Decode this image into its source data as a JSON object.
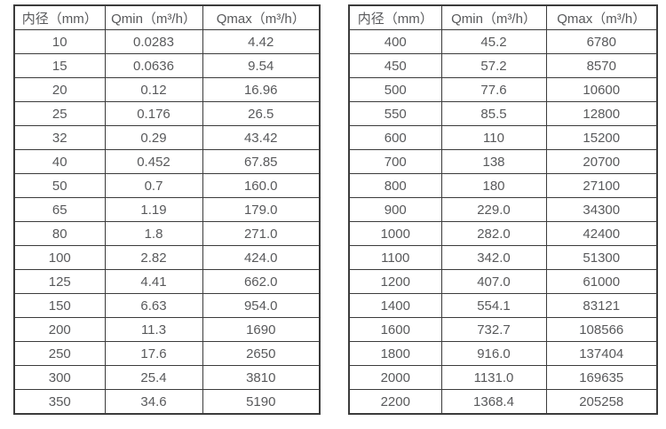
{
  "page": {
    "background": "#ffffff",
    "border_color": "#3b3b3b",
    "text_color": "#58595b"
  },
  "tables": [
    {
      "name": "flow-spec-table-small-diameters",
      "headers": [
        "内径（mm）",
        "Qmin（m³/h）",
        "Qmax（m³/h）"
      ],
      "rows": [
        [
          "10",
          "0.0283",
          "4.42"
        ],
        [
          "15",
          "0.0636",
          "9.54"
        ],
        [
          "20",
          "0.12",
          "16.96"
        ],
        [
          "25",
          "0.176",
          "26.5"
        ],
        [
          "32",
          "0.29",
          "43.42"
        ],
        [
          "40",
          "0.452",
          "67.85"
        ],
        [
          "50",
          "0.7",
          "160.0"
        ],
        [
          "65",
          "1.19",
          "179.0"
        ],
        [
          "80",
          "1.8",
          "271.0"
        ],
        [
          "100",
          "2.82",
          "424.0"
        ],
        [
          "125",
          "4.41",
          "662.0"
        ],
        [
          "150",
          "6.63",
          "954.0"
        ],
        [
          "200",
          "11.3",
          "1690"
        ],
        [
          "250",
          "17.6",
          "2650"
        ],
        [
          "300",
          "25.4",
          "3810"
        ],
        [
          "350",
          "34.6",
          "5190"
        ]
      ]
    },
    {
      "name": "flow-spec-table-large-diameters",
      "headers": [
        "内径（mm）",
        "Qmin（m³/h）",
        "Qmax（m³/h）"
      ],
      "rows": [
        [
          "400",
          "45.2",
          "6780"
        ],
        [
          "450",
          "57.2",
          "8570"
        ],
        [
          "500",
          "77.6",
          "10600"
        ],
        [
          "550",
          "85.5",
          "12800"
        ],
        [
          "600",
          "110",
          "15200"
        ],
        [
          "700",
          "138",
          "20700"
        ],
        [
          "800",
          "180",
          "27100"
        ],
        [
          "900",
          "229.0",
          "34300"
        ],
        [
          "1000",
          "282.0",
          "42400"
        ],
        [
          "1100",
          "342.0",
          "51300"
        ],
        [
          "1200",
          "407.0",
          "61000"
        ],
        [
          "1400",
          "554.1",
          "83121"
        ],
        [
          "1600",
          "732.7",
          "108566"
        ],
        [
          "1800",
          "916.0",
          "137404"
        ],
        [
          "2000",
          "1131.0",
          "169635"
        ],
        [
          "2200",
          "1368.4",
          "205258"
        ]
      ]
    }
  ]
}
